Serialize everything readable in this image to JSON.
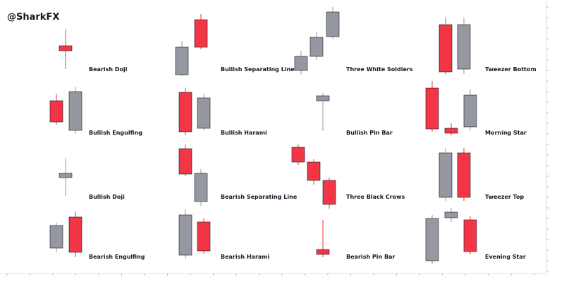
{
  "watermark": "@SharkFX",
  "patterns": [
    {
      "label": "Bearish Doji"
    },
    {
      "label": "Bullish Separating Line"
    },
    {
      "label": "Three White Soldiers"
    },
    {
      "label": "Tweezer Bottom"
    },
    {
      "label": "Bullish Engulfing"
    },
    {
      "label": "Bullish Harami"
    },
    {
      "label": "Bullish Pin Bar"
    },
    {
      "label": "Morning Star"
    },
    {
      "label": "Bullish Doji"
    },
    {
      "label": "Bearish Separating Line"
    },
    {
      "label": "Three Black Crows"
    },
    {
      "label": "Tweezer Top"
    },
    {
      "label": "Bearish Engulfing"
    },
    {
      "label": "Bearish Harami"
    },
    {
      "label": "Bearish Pin Bar"
    },
    {
      "label": "Evening Star"
    }
  ]
}
